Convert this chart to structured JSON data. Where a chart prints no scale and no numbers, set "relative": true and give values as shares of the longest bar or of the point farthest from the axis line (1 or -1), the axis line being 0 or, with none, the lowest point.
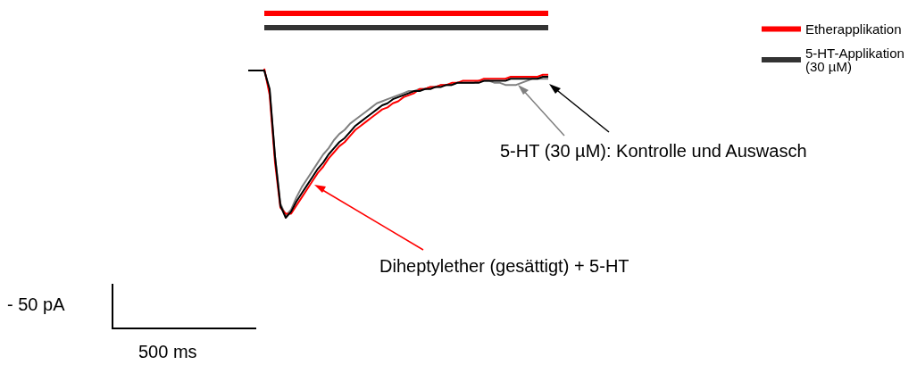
{
  "chart_data": {
    "type": "line",
    "relative": true,
    "marker": "none",
    "legend": "top right",
    "categories": [
      null,
      null,
      null,
      null,
      null,
      null,
      null,
      null,
      null,
      null,
      null,
      null,
      null,
      null,
      null,
      null,
      null,
      null,
      null,
      null,
      null,
      null,
      null,
      null,
      null,
      null,
      null,
      null,
      null,
      null,
      null,
      null,
      null,
      null,
      null,
      null,
      null,
      null,
      null,
      null,
      null,
      null,
      null,
      null,
      null,
      null,
      null,
      null,
      null,
      null,
      null,
      null,
      null,
      null,
      null,
      null,
      null
    ],
    "series": [
      {
        "name": "Etherapplikation",
        "color": "#ff0000",
        "values": [
          null,
          null,
          null,
          1,
          1,
          1,
          1,
          1,
          1,
          1,
          1,
          1,
          1,
          1,
          1,
          1,
          1,
          1,
          1,
          1,
          1,
          1,
          1,
          1,
          1,
          1,
          1,
          1,
          1,
          1,
          1,
          1,
          1,
          1,
          1,
          1,
          1,
          1,
          1,
          1,
          1,
          1,
          1,
          1,
          1,
          1,
          1,
          1,
          1,
          1,
          1,
          1,
          1,
          1,
          1,
          1,
          1
        ]
      },
      {
        "name": "5-HT-Applikation (30 µM)",
        "color": "#333333",
        "values": [
          null,
          null,
          null,
          0.93,
          0.93,
          0.93,
          0.93,
          0.93,
          0.93,
          0.93,
          0.93,
          0.93,
          0.93,
          0.93,
          0.93,
          0.93,
          0.93,
          0.93,
          0.93,
          0.93,
          0.93,
          0.93,
          0.93,
          0.93,
          0.93,
          0.93,
          0.93,
          0.93,
          0.93,
          0.93,
          0.93,
          0.93,
          0.93,
          0.93,
          0.93,
          0.93,
          0.93,
          0.93,
          0.93,
          0.93,
          0.93,
          0.93,
          0.93,
          0.93,
          0.93,
          0.93,
          0.93,
          0.93,
          0.93,
          0.93,
          0.93,
          0.93,
          0.93,
          0.93,
          0.93,
          0.93,
          0.93
        ]
      },
      {
        "color": "#808080",
        "values": [
          null,
          null,
          null,
          0.72,
          0.62,
          0.3,
          0.07,
          0.01,
          0.04,
          0.1,
          0.15,
          0.19,
          0.23,
          0.27,
          0.31,
          0.34,
          0.38,
          0.41,
          0.43,
          0.46,
          0.48,
          0.5,
          0.52,
          0.54,
          0.56,
          0.57,
          0.58,
          0.59,
          0.6,
          0.61,
          0.62,
          0.62,
          0.63,
          0.63,
          0.64,
          0.64,
          0.65,
          0.65,
          0.65,
          0.66,
          0.66,
          0.66,
          0.66,
          0.67,
          0.67,
          0.67,
          0.66,
          0.66,
          0.65,
          0.65,
          0.65,
          0.66,
          0.67,
          0.68,
          0.68,
          0.68,
          0.68
        ]
      },
      {
        "color": "#ff0000",
        "values": [
          null,
          null,
          null,
          0.73,
          0.6,
          0.27,
          0.05,
          0.02,
          0.02,
          0.06,
          0.1,
          0.14,
          0.18,
          0.22,
          0.25,
          0.29,
          0.32,
          0.35,
          0.37,
          0.4,
          0.43,
          0.45,
          0.47,
          0.49,
          0.51,
          0.53,
          0.54,
          0.56,
          0.57,
          0.59,
          0.6,
          0.61,
          0.63,
          0.63,
          0.64,
          0.64,
          0.65,
          0.65,
          0.66,
          0.66,
          0.67,
          0.67,
          0.67,
          0.67,
          0.68,
          0.68,
          0.68,
          0.68,
          0.68,
          0.69,
          0.69,
          0.69,
          0.69,
          0.69,
          0.69,
          0.7,
          0.7
        ]
      },
      {
        "color": "#000000",
        "values": [
          0.72,
          0.72,
          0.72,
          0.72,
          0.63,
          0.3,
          0.06,
          0,
          0.03,
          0.08,
          0.12,
          0.16,
          0.2,
          0.24,
          0.27,
          0.31,
          0.34,
          0.37,
          0.39,
          0.42,
          0.45,
          0.47,
          0.49,
          0.51,
          0.53,
          0.55,
          0.56,
          0.58,
          0.59,
          0.6,
          0.61,
          0.62,
          0.62,
          0.63,
          0.63,
          0.64,
          0.64,
          0.65,
          0.65,
          0.66,
          0.66,
          0.66,
          0.66,
          0.66,
          0.67,
          0.67,
          0.67,
          0.67,
          0.67,
          0.68,
          0.68,
          0.68,
          0.68,
          0.68,
          0.68,
          0.69,
          0.69
        ]
      }
    ],
    "annotations": [
      "- 50 pA",
      "500 ms",
      "5-HT (30 µM): Kontrolle und Auswasch",
      "Diheptylether (gesättigt) + 5-HT"
    ]
  }
}
